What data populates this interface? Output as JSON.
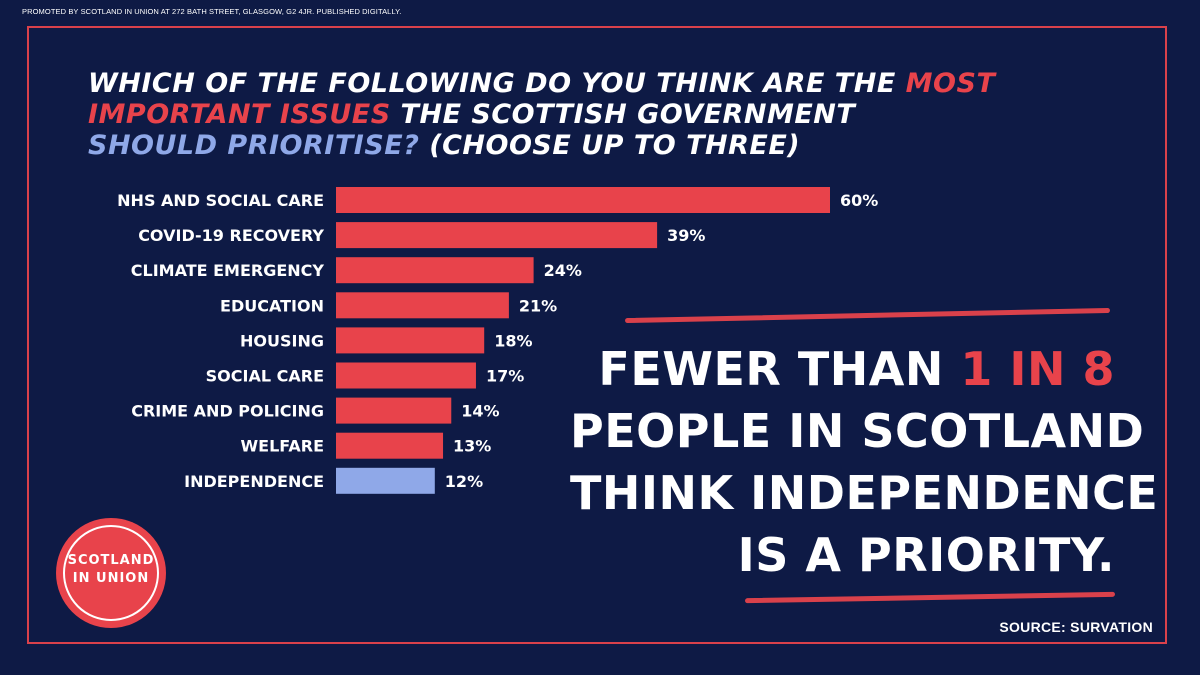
{
  "promo_text": "PROMOTED BY SCOTLAND IN UNION AT 272 BATH STREET, GLASGOW, G2 4JR. PUBLISHED DIGITALLY.",
  "title": {
    "part1": "Which of the following do you think are the ",
    "part2": "most important issues",
    "part3": " the Scottish Government ",
    "part4": "should prioritise?",
    "part5": " (choose up to three)"
  },
  "slogan": {
    "line1a": "Fewer than ",
    "line1b": "1 in 8",
    "line2": "people in Scotland",
    "line3": "think independence",
    "line4": "is a priority."
  },
  "source": "SOURCE: SURVATION",
  "logo": {
    "line1": "SCOTLAND",
    "line2": "IN UNION"
  },
  "colors": {
    "background": "#0e1a45",
    "bar": "#e8434b",
    "highlight_bar": "#8fa8e8",
    "frame": "#d9414b"
  },
  "chart_data": {
    "type": "bar",
    "orientation": "horizontal",
    "categories": [
      "NHS AND SOCIAL CARE",
      "COVID-19 RECOVERY",
      "CLIMATE EMERGENCY",
      "EDUCATION",
      "HOUSING",
      "SOCIAL CARE",
      "CRIME AND POLICING",
      "WELFARE",
      "INDEPENDENCE"
    ],
    "values": [
      60,
      39,
      24,
      21,
      18,
      17,
      14,
      13,
      12
    ],
    "value_labels": [
      "60%",
      "39%",
      "24%",
      "21%",
      "18%",
      "17%",
      "14%",
      "13%",
      "12%"
    ],
    "highlight": "INDEPENDENCE",
    "unit": "%",
    "xlim": [
      0,
      60
    ],
    "grid": false,
    "legend": "none"
  }
}
